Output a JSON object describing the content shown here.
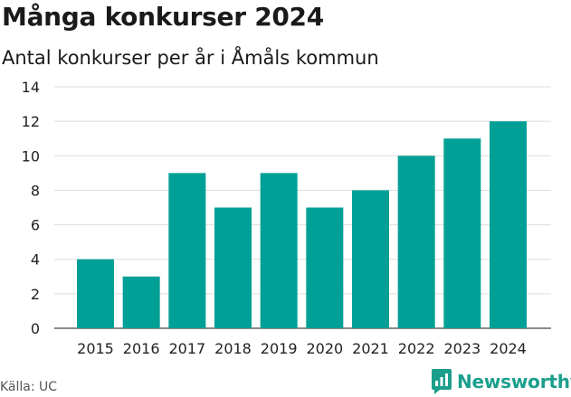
{
  "chart_data": {
    "type": "bar",
    "title": "Många konkurser 2024",
    "subtitle": "Antal konkurser per år i Åmåls kommun",
    "categories": [
      "2015",
      "2016",
      "2017",
      "2018",
      "2019",
      "2020",
      "2021",
      "2022",
      "2023",
      "2024"
    ],
    "values": [
      4,
      3,
      9,
      7,
      9,
      7,
      8,
      10,
      11,
      12
    ],
    "yticks": [
      0,
      2,
      4,
      6,
      8,
      10,
      12,
      14
    ],
    "ylim": [
      0,
      14
    ],
    "grid": true,
    "legend": "none",
    "bar_color": "#00a096"
  },
  "source": "Källa: UC",
  "brand": {
    "name": "Newsworthy",
    "color": "#1b9f8c"
  }
}
